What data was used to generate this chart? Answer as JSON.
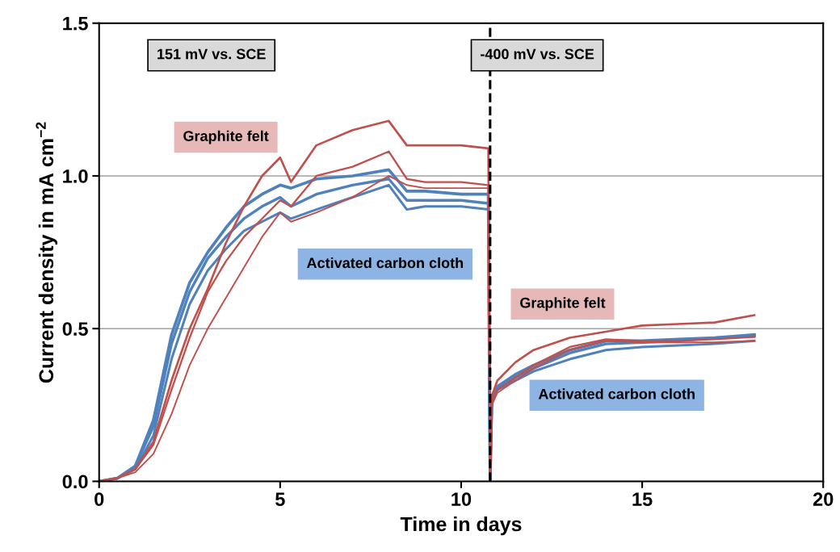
{
  "chart_data": {
    "type": "line",
    "xlabel": "Time in days",
    "ylabel": "Current density in mA cm$^{−2}$",
    "x": [
      0,
      0.5,
      1,
      1.5,
      2,
      2.5,
      3,
      3.5,
      4,
      4.5,
      5,
      5.3,
      6,
      7,
      8,
      8.5,
      9,
      10,
      10.75,
      10.8,
      10.85,
      11,
      11.5,
      12,
      13,
      14,
      15,
      16,
      17,
      18.1
    ],
    "series": [
      {
        "color": "#4f81bd",
        "values": [
          0,
          0.01,
          0.05,
          0.2,
          0.48,
          0.65,
          0.75,
          0.83,
          0.9,
          0.94,
          0.97,
          0.96,
          0.99,
          1.0,
          1.02,
          0.95,
          0.95,
          0.94,
          0.94,
          0,
          0.28,
          0.31,
          0.35,
          0.38,
          0.43,
          0.46,
          0.46,
          0.465,
          0.47,
          0.48
        ]
      },
      {
        "color": "#4f81bd",
        "values": [
          0,
          0.01,
          0.05,
          0.18,
          0.45,
          0.62,
          0.73,
          0.8,
          0.86,
          0.9,
          0.93,
          0.9,
          0.94,
          0.97,
          0.99,
          0.92,
          0.92,
          0.92,
          0.91,
          0,
          0.27,
          0.3,
          0.34,
          0.37,
          0.42,
          0.45,
          0.455,
          0.46,
          0.47,
          0.475
        ]
      },
      {
        "color": "#4f81bd",
        "values": [
          0,
          0.01,
          0.04,
          0.15,
          0.4,
          0.58,
          0.69,
          0.76,
          0.82,
          0.85,
          0.88,
          0.86,
          0.89,
          0.93,
          0.97,
          0.89,
          0.9,
          0.9,
          0.89,
          0,
          0.27,
          0.3,
          0.33,
          0.36,
          0.4,
          0.43,
          0.44,
          0.445,
          0.45,
          0.46
        ]
      },
      {
        "color": "#c0504d",
        "values": [
          0,
          0.01,
          0.04,
          0.13,
          0.33,
          0.5,
          0.63,
          0.78,
          0.9,
          1.0,
          1.06,
          0.98,
          1.1,
          1.15,
          1.18,
          1.1,
          1.1,
          1.1,
          1.09,
          0,
          0.28,
          0.33,
          0.39,
          0.43,
          0.47,
          0.49,
          0.51,
          0.515,
          0.52,
          0.544
        ]
      },
      {
        "color": "#c0504d",
        "values": [
          0,
          0.01,
          0.04,
          0.12,
          0.3,
          0.47,
          0.62,
          0.72,
          0.8,
          0.86,
          0.92,
          0.9,
          1.0,
          1.03,
          1.08,
          0.99,
          0.98,
          0.98,
          0.97,
          0,
          0.26,
          0.3,
          0.34,
          0.38,
          0.44,
          0.465,
          0.46,
          0.46,
          0.465,
          0.473
        ]
      },
      {
        "color": "#c0504d",
        "values": [
          0,
          0.01,
          0.03,
          0.09,
          0.22,
          0.38,
          0.5,
          0.6,
          0.7,
          0.8,
          0.88,
          0.85,
          0.88,
          0.93,
          1.0,
          0.97,
          0.96,
          0.96,
          0.96,
          0,
          0.25,
          0.29,
          0.33,
          0.37,
          0.43,
          0.46,
          0.455,
          0.455,
          0.455,
          0.46
        ]
      }
    ],
    "xlim": [
      0,
      20
    ],
    "xticks": [
      0,
      5,
      10,
      15,
      20
    ],
    "ylim": [
      0,
      1.5
    ],
    "yticks": [
      {
        "value": 0,
        "label": "0.0"
      },
      {
        "value": 0.5,
        "label": "0.5"
      },
      {
        "value": 1.0,
        "label": "1.0"
      },
      {
        "value": 1.5,
        "label": "1.5"
      }
    ],
    "grid": "y",
    "legend": false,
    "ref_lines": [
      {
        "axis": "x",
        "value": 10.8,
        "label": null,
        "color": "#000000",
        "line_style": "dashed"
      }
    ],
    "annotations": [
      "151 mV vs. SCE",
      "-400 mV vs. SCE",
      "Graphite felt",
      "Activated carbon cloth",
      "Graphite felt",
      "Activated carbon cloth"
    ]
  }
}
